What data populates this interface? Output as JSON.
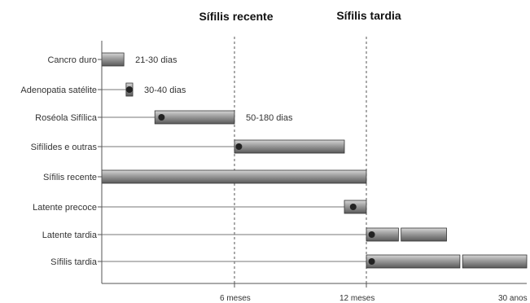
{
  "chart_data": {
    "type": "timeline",
    "phase_labels": [
      "Sífilis recente",
      "Sífilis tardia"
    ],
    "x_ticks": [
      "6 meses",
      "12 meses",
      "30 anos"
    ],
    "rows": [
      {
        "label": "Cancro duro",
        "note": "21-30 dias",
        "segments": [
          [
            0,
            1
          ]
        ],
        "marker": null
      },
      {
        "label": "Adenopatia satélite",
        "note": "30-40 dias",
        "segments": [
          [
            1.1,
            1.4
          ]
        ],
        "marker": 1.25
      },
      {
        "label": "Roséola Sifílica",
        "note": "50-180 dias",
        "segments": [
          [
            2.4,
            6
          ]
        ],
        "marker": 2.7
      },
      {
        "label": "Sifílides e outras",
        "note": "",
        "segments": [
          [
            6,
            11
          ]
        ],
        "marker": 6.2
      },
      {
        "label": "Sífilis recente",
        "note": "",
        "segments": [
          [
            0,
            12
          ]
        ],
        "marker": null
      },
      {
        "label": "Latente precoce",
        "note": "",
        "segments": [
          [
            11,
            12
          ]
        ],
        "marker": 11.4
      },
      {
        "label": "Latente tardia",
        "note": "",
        "segments": [
          [
            12,
            13.2
          ],
          [
            13.3,
            15
          ]
        ],
        "marker": 12.2
      },
      {
        "label": "Sífilis tardia",
        "note": "",
        "segments": [
          [
            12,
            15.5
          ],
          [
            15.6,
            18
          ]
        ],
        "marker": 12.2
      }
    ],
    "colors": {
      "bar_dark": "#5a5a5a",
      "bar_light": "#d6d6d6",
      "marker": "#222222",
      "axis": "#555555"
    }
  }
}
